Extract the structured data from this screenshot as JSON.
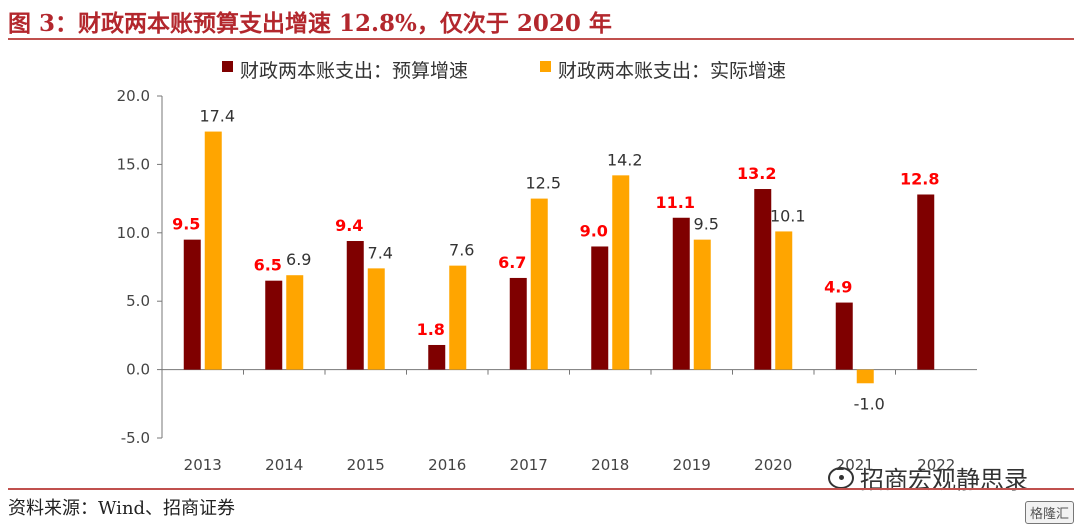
{
  "figure": {
    "title": "图 3：财政两本账预算支出增速 12.8%，仅次于 2020 年",
    "source": "资料来源：Wind、招商证券",
    "watermark": "招商宏观静思录",
    "corner_badge": "格隆汇"
  },
  "chart_data": {
    "type": "bar",
    "categories": [
      "2013",
      "2014",
      "2015",
      "2016",
      "2017",
      "2018",
      "2019",
      "2020",
      "2021",
      "2022"
    ],
    "series": [
      {
        "name": "财政两本账支出：预算增速",
        "color": "#7f0000",
        "values": [
          9.5,
          6.5,
          9.4,
          1.8,
          6.7,
          9.0,
          11.1,
          13.2,
          4.9,
          12.8
        ],
        "labels": [
          "9.5",
          "6.5",
          "9.4",
          "1.8",
          "6.7",
          "9.0",
          "11.1",
          "13.2",
          "4.9",
          "12.8"
        ],
        "label_color": "#ff0000"
      },
      {
        "name": "财政两本账支出：实际增速",
        "color": "#ffa500",
        "values": [
          17.4,
          6.9,
          7.4,
          7.6,
          12.5,
          14.2,
          9.5,
          10.1,
          -1.0,
          null
        ],
        "labels": [
          "17.4",
          "6.9",
          "7.4",
          "7.6",
          "12.5",
          "14.2",
          "9.5",
          "10.1",
          "-1.0",
          ""
        ],
        "label_color": "#333333"
      }
    ],
    "y_ticks": [
      "20.0",
      "15.0",
      "10.0",
      "5.0",
      "0.0",
      "-5.0"
    ],
    "ylim": [
      -5,
      20
    ],
    "legend_position": "top-center",
    "grid": false
  }
}
